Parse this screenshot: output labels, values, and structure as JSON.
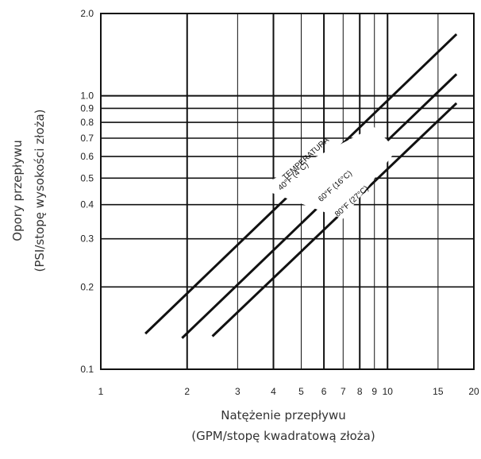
{
  "chart_data": {
    "type": "line",
    "x_scale": "log",
    "y_scale": "log",
    "xlim": [
      1,
      20
    ],
    "ylim": [
      0.1,
      2.0
    ],
    "grid": true,
    "xlabel_line1": "Natężenie przepływu",
    "xlabel_line2": "(GPM/stopę kwadratową złoża)",
    "ylabel_line1": "Opory przepływu",
    "ylabel_line2": "(PSI/stopę wysokości złoża)",
    "x_ticks": [
      {
        "value": 1,
        "label": "1"
      },
      {
        "value": 2,
        "label": "2"
      },
      {
        "value": 3,
        "label": "3"
      },
      {
        "value": 4,
        "label": "4"
      },
      {
        "value": 5,
        "label": "5"
      },
      {
        "value": 6,
        "label": "6"
      },
      {
        "value": 7,
        "label": "7"
      },
      {
        "value": 8,
        "label": "8"
      },
      {
        "value": 9,
        "label": "9"
      },
      {
        "value": 10,
        "label": "10"
      },
      {
        "value": 15,
        "label": "15"
      },
      {
        "value": 20,
        "label": "20"
      }
    ],
    "y_ticks": [
      {
        "value": 0.1,
        "label": "0.1"
      },
      {
        "value": 0.2,
        "label": "0.2"
      },
      {
        "value": 0.3,
        "label": "0.3"
      },
      {
        "value": 0.4,
        "label": "0.4"
      },
      {
        "value": 0.5,
        "label": "0.5"
      },
      {
        "value": 0.6,
        "label": "0.6"
      },
      {
        "value": 0.7,
        "label": "0.7"
      },
      {
        "value": 0.8,
        "label": "0.8"
      },
      {
        "value": 0.9,
        "label": "0.9"
      },
      {
        "value": 1.0,
        "label": "1.0"
      },
      {
        "value": 2.0,
        "label": "2.0"
      }
    ],
    "annotation_title": "TEMPERATURA",
    "series": [
      {
        "name": "40°F (4°C)",
        "points": [
          [
            1.43,
            0.135
          ],
          [
            17.4,
            1.68
          ]
        ]
      },
      {
        "name": "60°F (16°C)",
        "points": [
          [
            1.92,
            0.13
          ],
          [
            17.4,
            1.2
          ]
        ]
      },
      {
        "name": "80°F (27°C)",
        "points": [
          [
            2.45,
            0.132
          ],
          [
            17.4,
            0.94
          ]
        ]
      }
    ]
  }
}
